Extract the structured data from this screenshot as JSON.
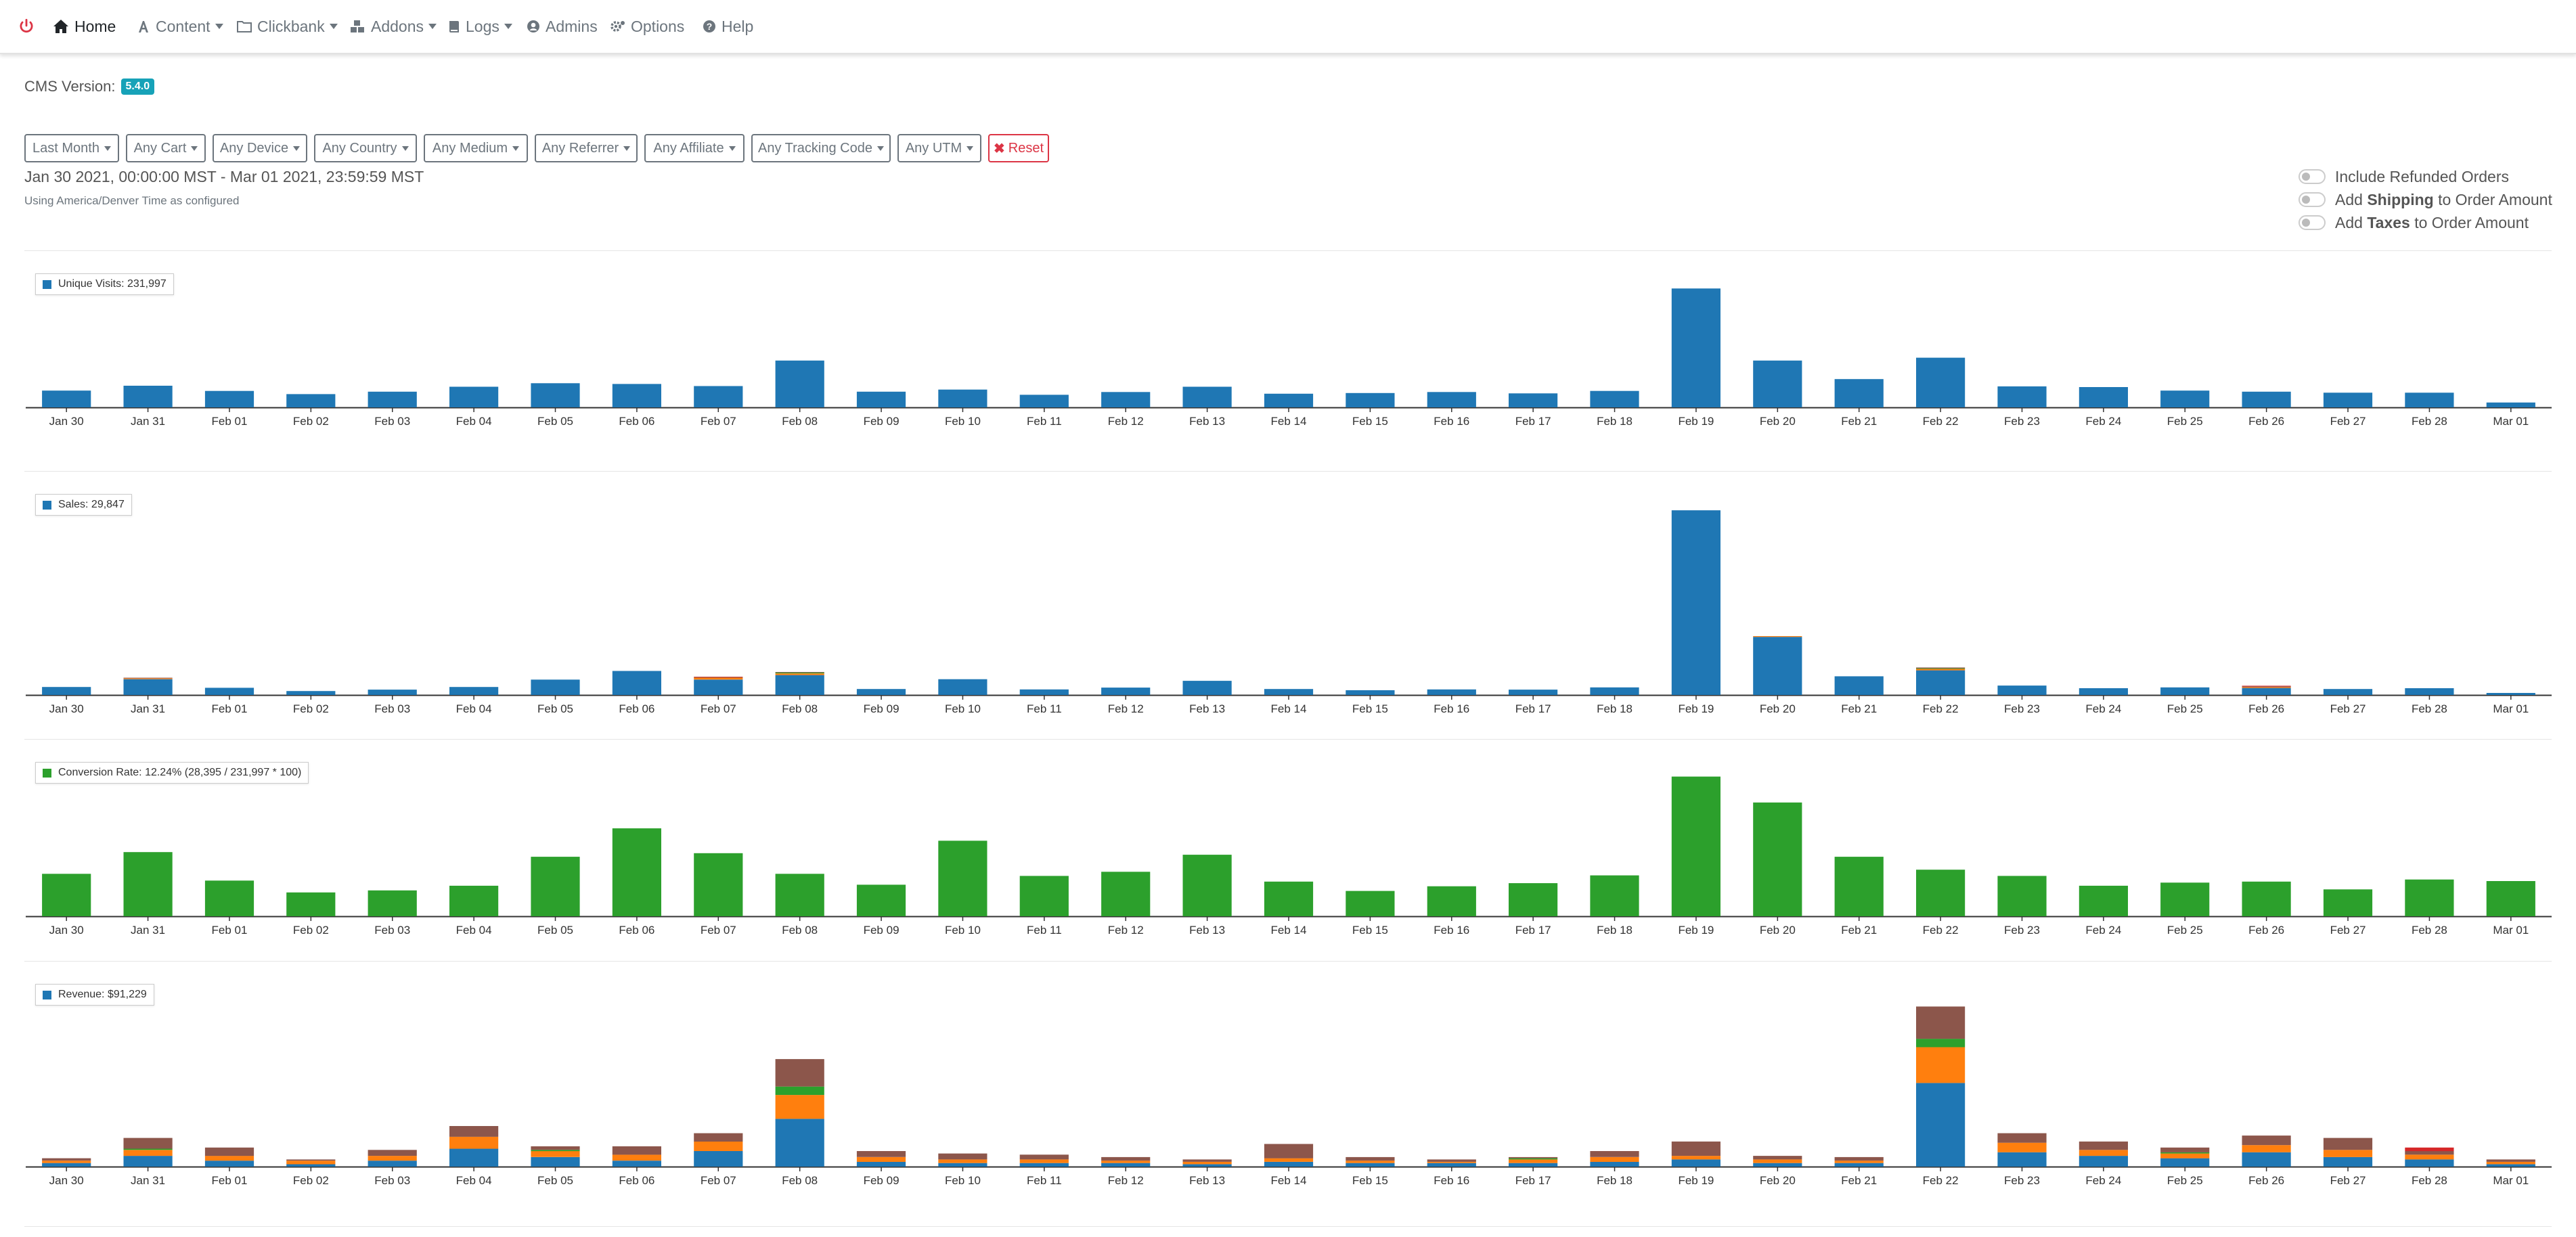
{
  "nav": {
    "items": [
      {
        "label": "Home",
        "icon": "home-icon"
      },
      {
        "label": "Content",
        "icon": "font-icon"
      },
      {
        "label": "Clickbank",
        "icon": "folder-icon"
      },
      {
        "label": "Addons",
        "icon": "cubes-icon"
      },
      {
        "label": "Logs",
        "icon": "book-icon"
      },
      {
        "label": "Admins",
        "icon": "user-circle-icon"
      },
      {
        "label": "Options",
        "icon": "cogs-icon"
      },
      {
        "label": "Help",
        "icon": "question-circle-icon"
      }
    ],
    "power_icon": "power-icon"
  },
  "cms": {
    "label": "CMS Version:",
    "version": "5.4.0"
  },
  "filters": [
    "Last Month",
    "Any Cart",
    "Any Device",
    "Any Country",
    "Any Medium",
    "Any Referrer",
    "Any Affiliate",
    "Any Tracking Code",
    "Any UTM"
  ],
  "reset_label": "Reset",
  "date_range": "Jan 30 2021, 00:00:00 MST - Mar 01 2021, 23:59:59 MST",
  "tz_note": "Using America/Denver Time as configured",
  "toggles": [
    {
      "pre": "Include Refunded Orders",
      "bold": "",
      "post": ""
    },
    {
      "pre": "Add ",
      "bold": "Shipping",
      "post": " to Order Amount"
    },
    {
      "pre": "Add ",
      "bold": "Taxes",
      "post": " to Order Amount"
    }
  ],
  "colors": {
    "blue": "#1f77b4",
    "orange": "#ff7f0e",
    "green": "#2ca02c",
    "brown": "#8c564b",
    "red": "#d62728",
    "purple": "#9467bd",
    "yellow": "#bcbd22"
  },
  "chart_data": [
    {
      "type": "bar",
      "legend": "Unique Visits: 231,997",
      "categories": [
        "Jan 30",
        "Jan 31",
        "Feb 01",
        "Feb 02",
        "Feb 03",
        "Feb 04",
        "Feb 05",
        "Feb 06",
        "Feb 07",
        "Feb 08",
        "Feb 09",
        "Feb 10",
        "Feb 11",
        "Feb 12",
        "Feb 13",
        "Feb 14",
        "Feb 15",
        "Feb 16",
        "Feb 17",
        "Feb 18",
        "Feb 19",
        "Feb 20",
        "Feb 21",
        "Feb 22",
        "Feb 23",
        "Feb 24",
        "Feb 25",
        "Feb 26",
        "Feb 27",
        "Feb 28",
        "Mar 01"
      ],
      "series": [
        {
          "color": "#1f77b4",
          "values": [
            4800,
            6200,
            4700,
            3800,
            4500,
            5900,
            6900,
            6700,
            6100,
            13400,
            4500,
            5100,
            3600,
            4400,
            5900,
            3900,
            4100,
            4400,
            4000,
            4700,
            34000,
            13400,
            8100,
            14200,
            6000,
            5800,
            4800,
            4500,
            4200,
            4200,
            1400
          ]
        }
      ],
      "ymax": 36000
    },
    {
      "type": "bar",
      "legend": "Sales: 29,847",
      "categories": [
        "Jan 30",
        "Jan 31",
        "Feb 01",
        "Feb 02",
        "Feb 03",
        "Feb 04",
        "Feb 05",
        "Feb 06",
        "Feb 07",
        "Feb 08",
        "Feb 09",
        "Feb 10",
        "Feb 11",
        "Feb 12",
        "Feb 13",
        "Feb 14",
        "Feb 15",
        "Feb 16",
        "Feb 17",
        "Feb 18",
        "Feb 19",
        "Feb 20",
        "Feb 21",
        "Feb 22",
        "Feb 23",
        "Feb 24",
        "Feb 25",
        "Feb 26",
        "Feb 27",
        "Feb 28",
        "Mar 01"
      ],
      "series": [
        {
          "color": "#1f77b4",
          "values": [
            390,
            770,
            350,
            190,
            260,
            390,
            750,
            1170,
            750,
            970,
            290,
            770,
            270,
            360,
            690,
            290,
            230,
            270,
            260,
            370,
            9000,
            2830,
            910,
            1200,
            460,
            330,
            370,
            340,
            290,
            330,
            100
          ]
        },
        {
          "color": "#ff7f0e",
          "values": [
            0,
            40,
            0,
            0,
            0,
            0,
            0,
            0,
            90,
            80,
            0,
            0,
            0,
            0,
            0,
            0,
            0,
            0,
            0,
            0,
            0,
            40,
            0,
            70,
            0,
            0,
            0,
            40,
            0,
            0,
            0
          ]
        },
        {
          "color": "#2ca02c",
          "values": [
            0,
            0,
            0,
            0,
            0,
            0,
            0,
            0,
            0,
            40,
            0,
            0,
            0,
            0,
            0,
            0,
            0,
            0,
            0,
            0,
            0,
            0,
            0,
            30,
            0,
            0,
            0,
            0,
            0,
            0,
            0
          ]
        },
        {
          "color": "#8c564b",
          "values": [
            0,
            30,
            0,
            0,
            0,
            0,
            0,
            0,
            30,
            30,
            0,
            0,
            0,
            0,
            0,
            0,
            0,
            0,
            0,
            0,
            0,
            0,
            0,
            40,
            0,
            0,
            0,
            40,
            0,
            0,
            0
          ]
        },
        {
          "color": "#d62728",
          "values": [
            0,
            0,
            0,
            0,
            0,
            0,
            0,
            0,
            20,
            0,
            0,
            0,
            0,
            0,
            0,
            0,
            0,
            0,
            0,
            0,
            0,
            0,
            0,
            0,
            0,
            0,
            0,
            30,
            0,
            0,
            0
          ]
        }
      ],
      "ymax": 9300
    },
    {
      "type": "bar",
      "legend": "Conversion Rate: 12.24% (28,395 / 231,997 * 100)",
      "categories": [
        "Jan 30",
        "Jan 31",
        "Feb 01",
        "Feb 02",
        "Feb 03",
        "Feb 04",
        "Feb 05",
        "Feb 06",
        "Feb 07",
        "Feb 08",
        "Feb 09",
        "Feb 10",
        "Feb 11",
        "Feb 12",
        "Feb 13",
        "Feb 14",
        "Feb 15",
        "Feb 16",
        "Feb 17",
        "Feb 18",
        "Feb 19",
        "Feb 20",
        "Feb 21",
        "Feb 22",
        "Feb 23",
        "Feb 24",
        "Feb 25",
        "Feb 26",
        "Feb 27",
        "Feb 28",
        "Mar 01"
      ],
      "series": [
        {
          "color": "#2ca02c",
          "values": [
            8.2,
            12.4,
            6.9,
            4.6,
            5.0,
            5.9,
            11.5,
            17.0,
            12.2,
            8.2,
            6.1,
            14.6,
            7.8,
            8.6,
            11.9,
            6.7,
            4.9,
            5.8,
            6.4,
            7.9,
            27.0,
            22.0,
            11.5,
            9.0,
            7.8,
            5.9,
            6.5,
            6.7,
            5.2,
            7.1,
            6.8
          ]
        }
      ],
      "ymax": 28
    },
    {
      "type": "bar",
      "legend": "Revenue: $91,229",
      "categories": [
        "Jan 30",
        "Jan 31",
        "Feb 01",
        "Feb 02",
        "Feb 03",
        "Feb 04",
        "Feb 05",
        "Feb 06",
        "Feb 07",
        "Feb 08",
        "Feb 09",
        "Feb 10",
        "Feb 11",
        "Feb 12",
        "Feb 13",
        "Feb 14",
        "Feb 15",
        "Feb 16",
        "Feb 17",
        "Feb 18",
        "Feb 19",
        "Feb 20",
        "Feb 21",
        "Feb 22",
        "Feb 23",
        "Feb 24",
        "Feb 25",
        "Feb 26",
        "Feb 27",
        "Feb 28",
        "Mar 01"
      ],
      "series": [
        {
          "color": "#1f77b4",
          "values": [
            300,
            900,
            500,
            200,
            500,
            1500,
            800,
            500,
            1300,
            4000,
            400,
            300,
            300,
            300,
            200,
            400,
            300,
            300,
            300,
            400,
            600,
            300,
            300,
            7000,
            1200,
            900,
            700,
            1200,
            800,
            600,
            200
          ]
        },
        {
          "color": "#ff7f0e",
          "values": [
            200,
            500,
            400,
            300,
            400,
            1000,
            500,
            500,
            800,
            2000,
            400,
            300,
            300,
            200,
            200,
            300,
            200,
            100,
            300,
            400,
            300,
            300,
            200,
            3000,
            800,
            500,
            400,
            600,
            600,
            400,
            200
          ]
        },
        {
          "color": "#2ca02c",
          "values": [
            0,
            100,
            0,
            0,
            0,
            0,
            100,
            0,
            0,
            700,
            0,
            0,
            0,
            0,
            0,
            0,
            0,
            0,
            100,
            0,
            0,
            0,
            0,
            700,
            0,
            0,
            100,
            0,
            0,
            0,
            0
          ]
        },
        {
          "color": "#8c564b",
          "values": [
            200,
            900,
            700,
            100,
            500,
            900,
            300,
            700,
            700,
            2300,
            500,
            500,
            400,
            300,
            200,
            1200,
            300,
            200,
            100,
            500,
            1200,
            300,
            300,
            2700,
            800,
            700,
            400,
            800,
            1000,
            300,
            200
          ]
        },
        {
          "color": "#d62728",
          "values": [
            0,
            0,
            0,
            0,
            0,
            0,
            0,
            0,
            0,
            0,
            0,
            0,
            0,
            0,
            0,
            0,
            0,
            0,
            0,
            0,
            0,
            0,
            0,
            0,
            0,
            0,
            0,
            0,
            0,
            300,
            0
          ]
        }
      ],
      "ymax": 14500
    }
  ]
}
